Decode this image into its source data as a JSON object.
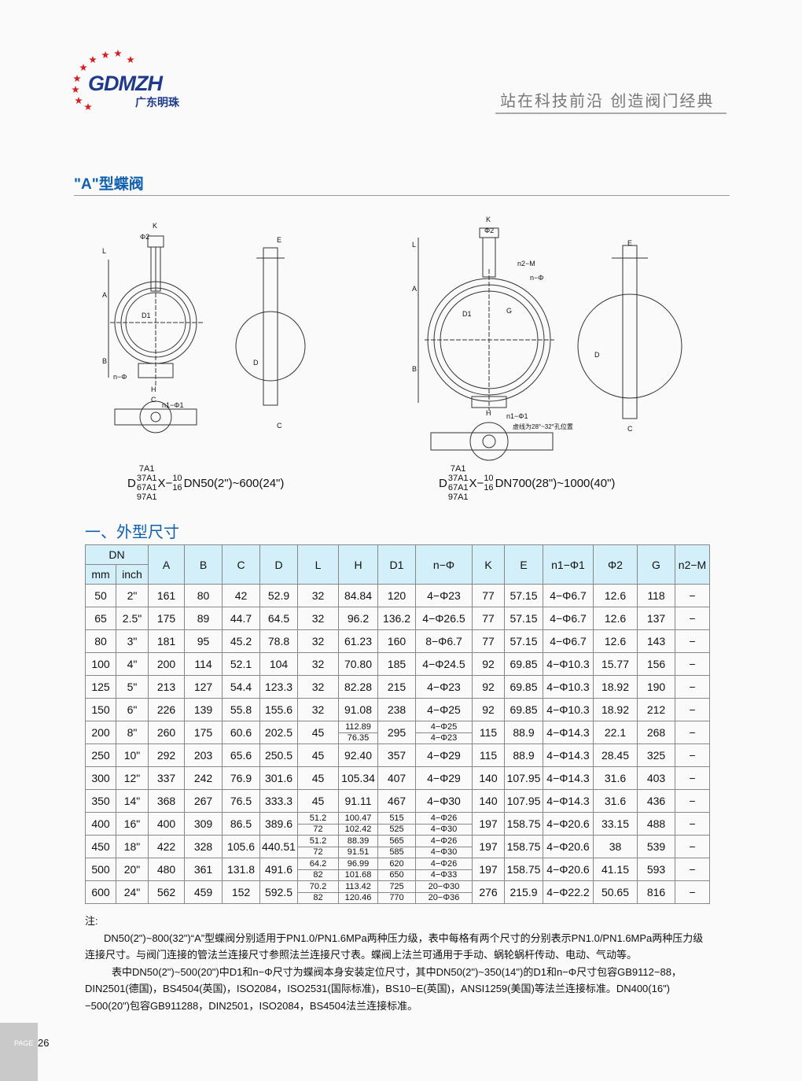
{
  "header": {
    "logo_text": "GDMZH",
    "logo_cn": "广东明珠",
    "slogan": "站在科技前沿 创造阀门经典"
  },
  "title": "\"A\"型蝶阀",
  "drawings": {
    "labels": {
      "K": "K",
      "phi2": "Φ2",
      "L": "L",
      "A": "A",
      "B": "B",
      "D1": "D1",
      "nphi": "n−Φ",
      "H": "H",
      "C": "C",
      "E": "E",
      "D": "D",
      "n1phi1": "n1−Φ1",
      "G": "G",
      "n2M": "n2−M",
      "note": "虚线为28°~32°孔位置"
    },
    "model_left": {
      "prefix": "D",
      "stack": [
        "7A1",
        "37A1",
        "67A1",
        "97A1"
      ],
      "mid": "X−",
      "frac": [
        "10",
        "16"
      ],
      "range": "DN50(2\")~600(24\")"
    },
    "model_right": {
      "prefix": "D",
      "stack": [
        "7A1",
        "37A1",
        "67A1",
        "97A1"
      ],
      "mid": "X−",
      "frac": [
        "10",
        "16"
      ],
      "range": "DN700(28\")~1000(40\")"
    }
  },
  "section_title": "一、外型尺寸",
  "table": {
    "dn": "DN",
    "mm": "mm",
    "inch": "inch",
    "columns": [
      "A",
      "B",
      "C",
      "D",
      "L",
      "H",
      "D1",
      "n−Φ",
      "K",
      "E",
      "n1−Φ1",
      "Φ2",
      "G",
      "n2−M"
    ],
    "rows": [
      [
        "50",
        "2\"",
        "161",
        "80",
        "42",
        "52.9",
        "32",
        "84.84",
        "120",
        "4−Φ23",
        "77",
        "57.15",
        "4−Φ6.7",
        "12.6",
        "118",
        "−"
      ],
      [
        "65",
        "2.5\"",
        "175",
        "89",
        "44.7",
        "64.5",
        "32",
        "96.2",
        "136.2",
        "4−Φ26.5",
        "77",
        "57.15",
        "4−Φ6.7",
        "12.6",
        "137",
        "−"
      ],
      [
        "80",
        "3\"",
        "181",
        "95",
        "45.2",
        "78.8",
        "32",
        "61.23",
        "160",
        "8−Φ6.7",
        "77",
        "57.15",
        "4−Φ6.7",
        "12.6",
        "143",
        "−"
      ],
      [
        "100",
        "4\"",
        "200",
        "114",
        "52.1",
        "104",
        "32",
        "70.80",
        "185",
        "4−Φ24.5",
        "92",
        "69.85",
        "4−Φ10.3",
        "15.77",
        "156",
        "−"
      ],
      [
        "125",
        "5\"",
        "213",
        "127",
        "54.4",
        "123.3",
        "32",
        "82.28",
        "215",
        "4−Φ23",
        "92",
        "69.85",
        "4−Φ10.3",
        "18.92",
        "190",
        "−"
      ],
      [
        "150",
        "6\"",
        "226",
        "139",
        "55.8",
        "155.6",
        "32",
        "91.08",
        "238",
        "4−Φ25",
        "92",
        "69.85",
        "4−Φ10.3",
        "18.92",
        "212",
        "−"
      ],
      [
        "200",
        "8\"",
        "260",
        "175",
        "60.6",
        "202.5",
        "45",
        [
          "112.89",
          "76.35"
        ],
        "295",
        [
          "4−Φ25",
          "4−Φ23"
        ],
        "115",
        "88.9",
        "4−Φ14.3",
        "22.1",
        "268",
        "−"
      ],
      [
        "250",
        "10\"",
        "292",
        "203",
        "65.6",
        "250.5",
        "45",
        "92.40",
        "357",
        "4−Φ29",
        "115",
        "88.9",
        "4−Φ14.3",
        "28.45",
        "325",
        "−"
      ],
      [
        "300",
        "12\"",
        "337",
        "242",
        "76.9",
        "301.6",
        "45",
        "105.34",
        "407",
        "4−Φ29",
        "140",
        "107.95",
        "4−Φ14.3",
        "31.6",
        "403",
        "−"
      ],
      [
        "350",
        "14\"",
        "368",
        "267",
        "76.5",
        "333.3",
        "45",
        "91.11",
        "467",
        "4−Φ30",
        "140",
        "107.95",
        "4−Φ14.3",
        "31.6",
        "436",
        "−"
      ],
      [
        "400",
        "16\"",
        "400",
        "309",
        "86.5",
        "389.6",
        [
          "51.2",
          "72"
        ],
        [
          "100.47",
          "102.42"
        ],
        [
          "515",
          "525"
        ],
        [
          "4−Φ26",
          "4−Φ30"
        ],
        "197",
        "158.75",
        "4−Φ20.6",
        "33.15",
        "488",
        "−"
      ],
      [
        "450",
        "18\"",
        "422",
        "328",
        "105.6",
        "440.51",
        [
          "51.2",
          "72"
        ],
        [
          "88.39",
          "91.51"
        ],
        [
          "565",
          "585"
        ],
        [
          "4−Φ26",
          "4−Φ30"
        ],
        "197",
        "158.75",
        "4−Φ20.6",
        "38",
        "539",
        "−"
      ],
      [
        "500",
        "20\"",
        "480",
        "361",
        "131.8",
        "491.6",
        [
          "64.2",
          "82"
        ],
        [
          "96.99",
          "101.68"
        ],
        [
          "620",
          "650"
        ],
        [
          "4−Φ26",
          "4−Φ33"
        ],
        "197",
        "158.75",
        "4−Φ20.6",
        "41.15",
        "593",
        "−"
      ],
      [
        "600",
        "24\"",
        "562",
        "459",
        "152",
        "592.5",
        [
          "70.2",
          "82"
        ],
        [
          "113.42",
          "120.46"
        ],
        [
          "725",
          "770"
        ],
        [
          "20−Φ30",
          "20−Φ36"
        ],
        "276",
        "215.9",
        "4−Φ22.2",
        "50.65",
        "816",
        "−"
      ]
    ]
  },
  "notes": {
    "heading": "注:",
    "p1": "DN50(2\")~800(32\")“A”型蝶阀分别适用于PN1.0/PN1.6MPa两种压力级，表中每格有两个尺寸的分别表示PN1.0/PN1.6MPa两种压力级连接尺寸。与阀门连接的管法兰连接尺寸参照法兰连接尺寸表。蝶阀上法兰可通用于手动、蜗轮蜗杆传动、电动、气动等。",
    "p2": "表中DN50(2\")~500(20\")中D1和n−Φ尺寸为蝶阀本身安装定位尺寸，其中DN50(2\")~350(14\")的D1和n−Φ尺寸包容GB9112−88，DIN2501(德国)，BS4504(英国)，ISO2084，ISO2531(国际标准)，BS10−E(英国)，ANSI1259(美国)等法兰连接标准。DN400(16\")−500(20\")包容GB911288，DIN2501，ISO2084，BS4504法兰连接标准。"
  },
  "footer": {
    "page_label": "PAGE",
    "page_number": "26"
  },
  "colors": {
    "accent": "#1060b0",
    "table_header": "#d3effa",
    "logo_star": "#d42020",
    "logo_text": "#1f3a8a"
  }
}
